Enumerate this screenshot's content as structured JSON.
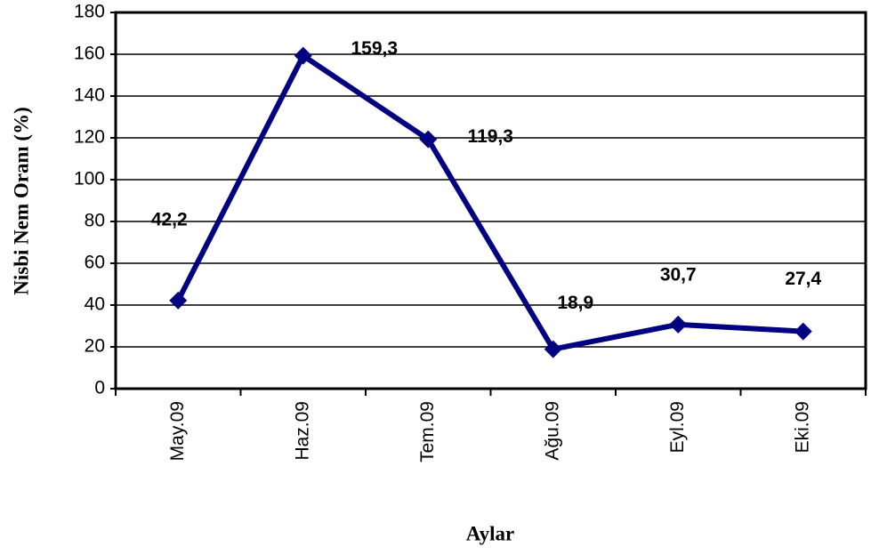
{
  "chart_data": {
    "type": "line",
    "x_label": "Aylar",
    "y_label": "Nisbi Nem Oranı (%)",
    "categories": [
      "May.09",
      "Haz.09",
      "Tem.09",
      "Ağu.09",
      "Eyl.09",
      "Eki.09"
    ],
    "values": [
      42.2,
      159.3,
      119.3,
      18.9,
      30.7,
      27.4
    ],
    "value_labels": [
      "42,2",
      "159,3",
      "119,3",
      "18,9",
      "30,7",
      "27,4"
    ],
    "color": "#000080",
    "ylim": [
      0,
      180
    ],
    "yticks": [
      0,
      20,
      40,
      60,
      80,
      100,
      120,
      140,
      160,
      180
    ],
    "grid": true
  }
}
